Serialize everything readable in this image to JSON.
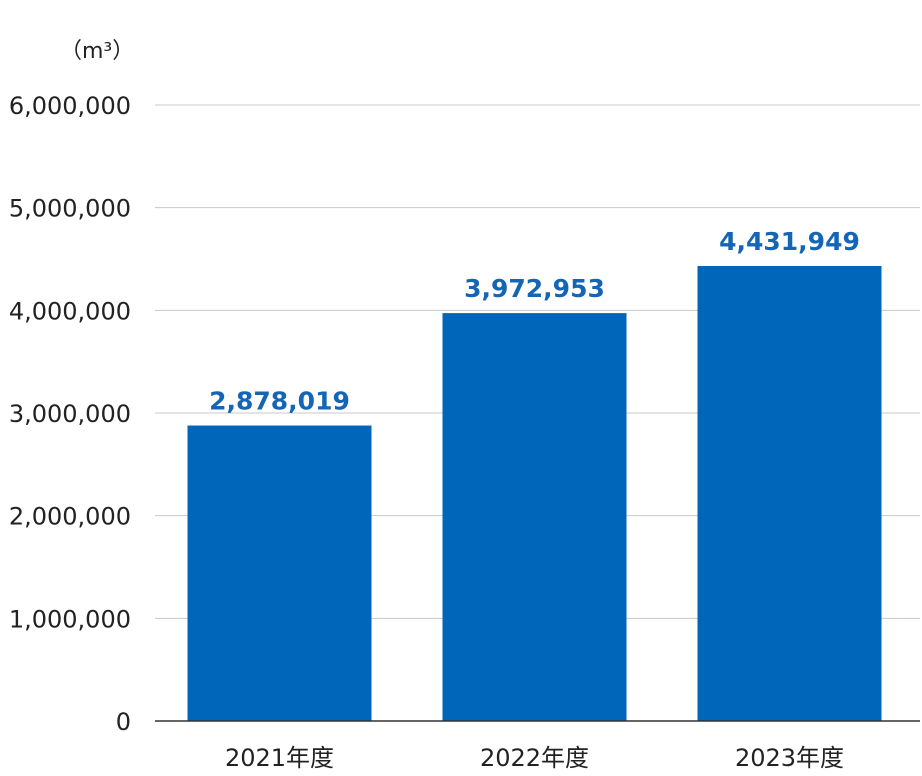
{
  "chart_data": {
    "type": "bar",
    "title": "",
    "xlabel": "",
    "ylabel": "",
    "unit": "（m³）",
    "categories": [
      "2021年度",
      "2022年度",
      "2023年度"
    ],
    "values": [
      2878019,
      3972953,
      4431949
    ],
    "value_labels": [
      "2,878,019",
      "3,972,953",
      "4,431,949"
    ],
    "ylim": [
      0,
      6000000
    ],
    "yticks": [
      0,
      1000000,
      2000000,
      3000000,
      4000000,
      5000000,
      6000000
    ],
    "ytick_labels": [
      "0",
      "1,000,000",
      "2,000,000",
      "3,000,000",
      "4,000,000",
      "5,000,000",
      "6,000,000"
    ],
    "grid": true,
    "legend": "none",
    "colors": {
      "bar": "#0066b9",
      "data_label": "#1565b7",
      "grid": "#c8c8c8"
    }
  }
}
